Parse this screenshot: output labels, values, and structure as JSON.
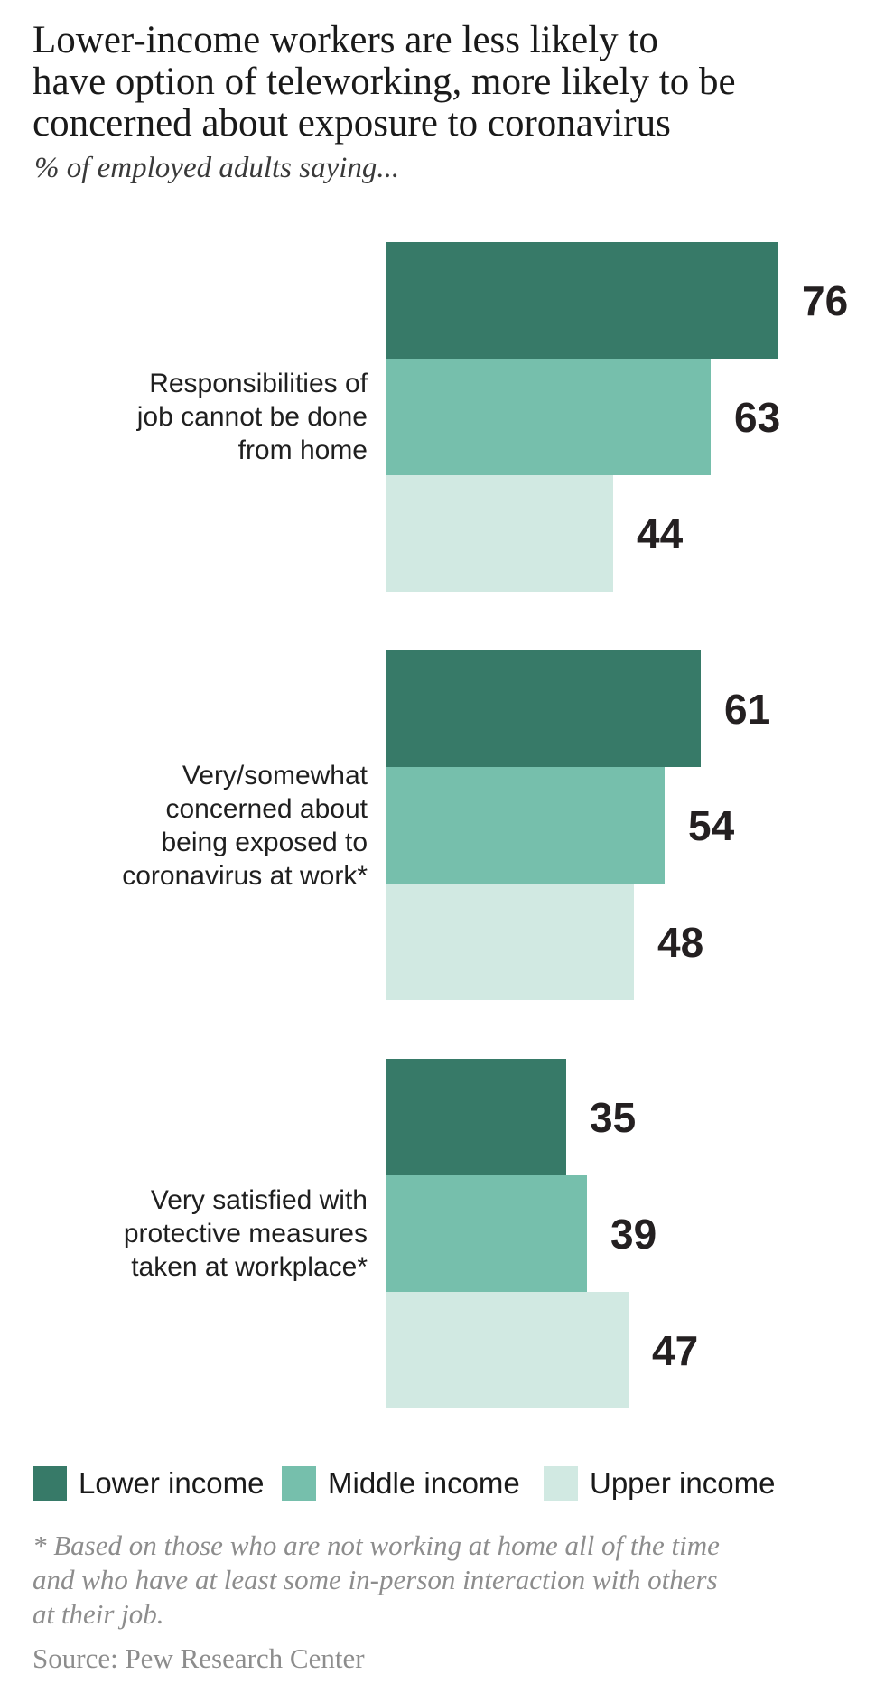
{
  "title_lines": [
    "Lower-income workers are less likely to",
    "have option of teleworking, more likely to be",
    "concerned about exposure to coronavirus"
  ],
  "subtitle": "% of employed adults saying...",
  "chart_data": {
    "type": "bar",
    "orientation": "horizontal",
    "unit": "% of employed adults",
    "value_range": [
      0,
      100
    ],
    "grid": false,
    "legend_position": "bottom",
    "categories": [
      "Responsibilities of job cannot be done from home",
      "Very/somewhat concerned about being exposed to coronavirus at work*",
      "Very satisfied with protective measures taken at workplace*"
    ],
    "category_label_lines": [
      [
        "Responsibilities of",
        "job cannot be done",
        "from home"
      ],
      [
        "Very/somewhat",
        "concerned about",
        "being exposed to",
        "coronavirus at work*"
      ],
      [
        "Very satisfied with",
        "protective measures",
        "taken at workplace*"
      ]
    ],
    "series": [
      {
        "name": "Lower income",
        "color": "#377A68",
        "values": [
          76,
          61,
          35
        ]
      },
      {
        "name": "Middle income",
        "color": "#76BFAC",
        "values": [
          63,
          54,
          39
        ]
      },
      {
        "name": "Upper income",
        "color": "#D1E9E2",
        "values": [
          44,
          48,
          47
        ]
      }
    ]
  },
  "colors": {
    "lower_income": "#377A68",
    "middle_income": "#76BFAC",
    "upper_income": "#D1E9E2",
    "value_label": "#242021",
    "note_text": "#8d8d8d"
  },
  "footnote_lines": [
    "* Based on those who are not working at home all of the time",
    "and who have at least some in-person interaction with others",
    "at their job."
  ],
  "source": "Source: Pew Research Center"
}
